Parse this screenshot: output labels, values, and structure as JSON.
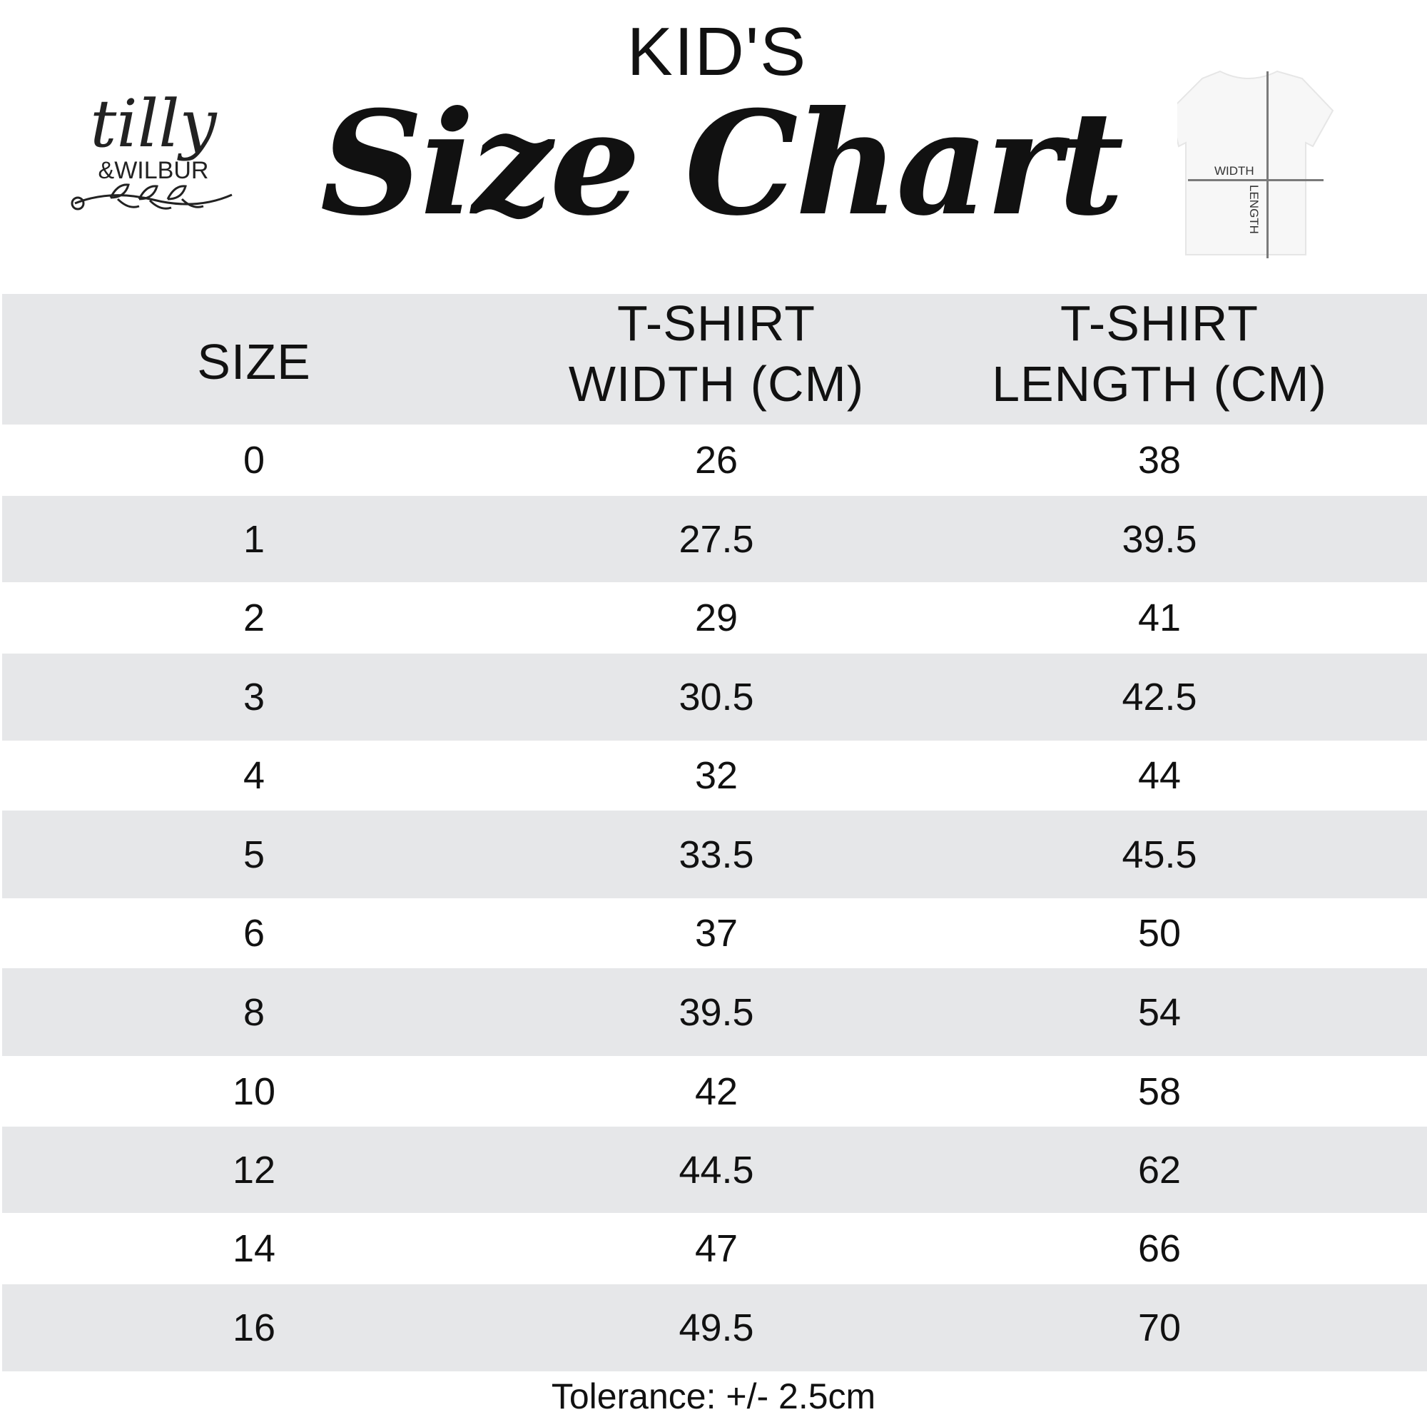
{
  "header": {
    "kicker": "KID'S",
    "title": "Size Chart",
    "logo_text": "tilly & WILBUR",
    "diagram": {
      "width_label": "WIDTH",
      "length_label": "LENGTH"
    }
  },
  "table": {
    "columns": [
      {
        "line1": "SIZE",
        "line2": ""
      },
      {
        "line1": "T-SHIRT",
        "line2": "WIDTH (CM)"
      },
      {
        "line1": "T-SHIRT",
        "line2": "LENGTH (CM)"
      }
    ],
    "rows": [
      [
        "0",
        "26",
        "38"
      ],
      [
        "1",
        "27.5",
        "39.5"
      ],
      [
        "2",
        "29",
        "41"
      ],
      [
        "3",
        "30.5",
        "42.5"
      ],
      [
        "4",
        "32",
        "44"
      ],
      [
        "5",
        "33.5",
        "45.5"
      ],
      [
        "6",
        "37",
        "50"
      ],
      [
        "8",
        "39.5",
        "54"
      ],
      [
        "10",
        "42",
        "58"
      ],
      [
        "12",
        "44.5",
        "62"
      ],
      [
        "14",
        "47",
        "66"
      ],
      [
        "16",
        "49.5",
        "70"
      ]
    ],
    "stripe_color": "#e6e7e9"
  },
  "footer": {
    "tolerance": "Tolerance: +/- 2.5cm"
  }
}
